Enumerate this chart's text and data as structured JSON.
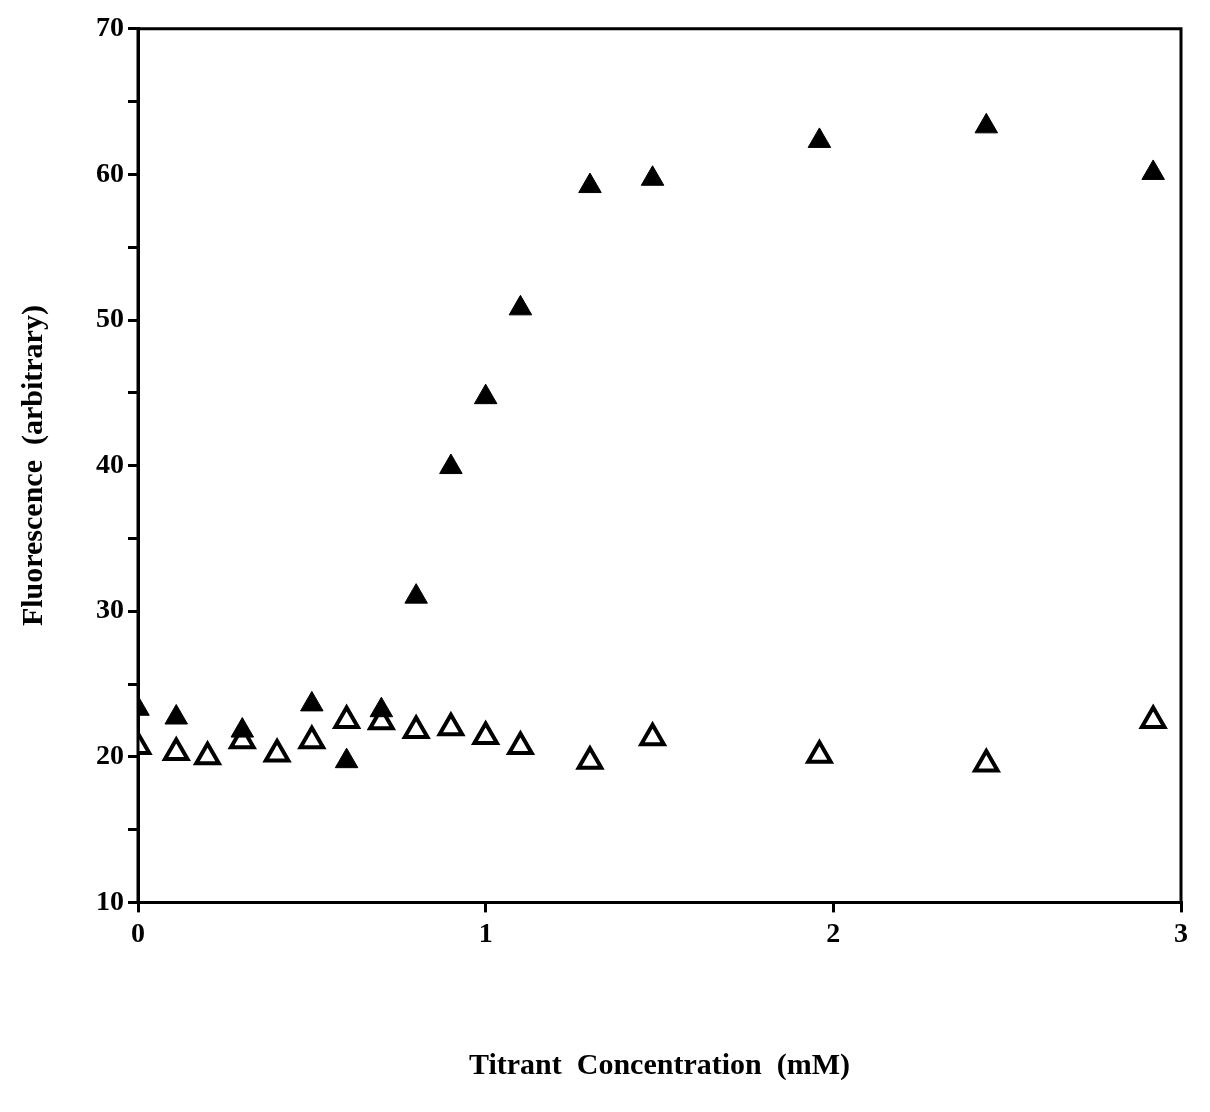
{
  "chart_data": {
    "type": "scatter",
    "xlabel": "Titrant  Concentration  (mM)",
    "ylabel": "Fluorescence  (arbitrary)",
    "series": [
      {
        "color": "#000000",
        "x": [
          0,
          0.11,
          0.3,
          0.5,
          0.6,
          0.7,
          0.8,
          0.9,
          1.0,
          1.1,
          1.3,
          1.48,
          1.96,
          2.44,
          2.92
        ],
        "values": [
          23.3,
          22.7,
          21.8,
          23.6,
          19.7,
          23.2,
          31.0,
          39.9,
          44.7,
          50.8,
          59.2,
          59.7,
          62.3,
          63.3,
          60.1
        ]
      },
      {
        "color": "#000000",
        "x": [
          0,
          0.11,
          0.2,
          0.3,
          0.4,
          0.5,
          0.6,
          0.7,
          0.8,
          0.9,
          1.0,
          1.1,
          1.3,
          1.48,
          1.96,
          2.44,
          2.92
        ],
        "values": [
          20.7,
          20.3,
          20.0,
          21.1,
          20.2,
          21.1,
          22.5,
          22.4,
          21.8,
          22.0,
          21.4,
          20.7,
          19.7,
          21.3,
          20.1,
          19.5,
          22.5
        ]
      }
    ],
    "xlim": [
      0,
      3
    ],
    "xticks": [
      0,
      1,
      2,
      3
    ],
    "ylim": [
      10,
      70
    ],
    "yticks": [
      10,
      {
        "value": 15,
        "label": null
      },
      20,
      {
        "value": 25,
        "label": null
      },
      30,
      {
        "value": 35,
        "label": null
      },
      40,
      {
        "value": 45,
        "label": null
      },
      50,
      {
        "value": 55,
        "label": null
      },
      60,
      {
        "value": 65,
        "label": null
      },
      70
    ],
    "marker": "triangle",
    "grid": false,
    "legend": false
  }
}
